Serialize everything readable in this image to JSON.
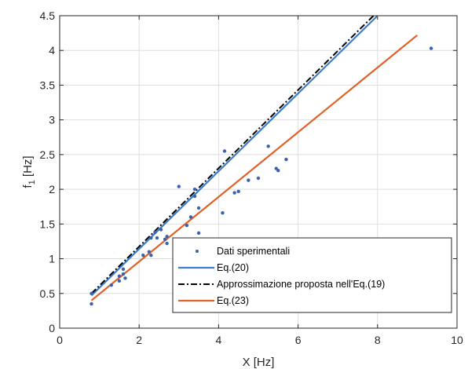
{
  "chart_data": {
    "type": "scatter",
    "xlabel": "X [Hz]",
    "ylabel": "f",
    "ylabel_sub": "1",
    "ylabel_unit": " [Hz]",
    "xlim": [
      0,
      10
    ],
    "ylim": [
      0,
      4.5
    ],
    "xticks": [
      "0",
      "2",
      "4",
      "6",
      "8",
      "10"
    ],
    "yticks": [
      "0",
      "0.5",
      "1",
      "1.5",
      "2",
      "2.5",
      "3",
      "3.5",
      "4",
      "4.5"
    ],
    "grid": true,
    "legend_position": "bottom-right",
    "series": [
      {
        "name": "Dati sperimentali",
        "kind": "points",
        "color": "#3a62b0",
        "points": [
          [
            0.8,
            0.35
          ],
          [
            0.8,
            0.5
          ],
          [
            1.3,
            0.62
          ],
          [
            1.5,
            0.68
          ],
          [
            1.5,
            0.75
          ],
          [
            1.6,
            0.78
          ],
          [
            1.65,
            0.72
          ],
          [
            1.6,
            0.85
          ],
          [
            2.1,
            1.05
          ],
          [
            2.25,
            1.1
          ],
          [
            2.3,
            1.05
          ],
          [
            2.3,
            1.3
          ],
          [
            2.4,
            1.38
          ],
          [
            2.45,
            1.3
          ],
          [
            2.55,
            1.42
          ],
          [
            2.65,
            1.28
          ],
          [
            2.7,
            1.22
          ],
          [
            2.7,
            1.32
          ],
          [
            3.0,
            2.04
          ],
          [
            3.2,
            1.48
          ],
          [
            3.3,
            1.6
          ],
          [
            3.4,
            1.9
          ],
          [
            3.4,
            2.0
          ],
          [
            3.5,
            1.73
          ],
          [
            3.5,
            1.37
          ],
          [
            4.1,
            1.66
          ],
          [
            4.15,
            2.55
          ],
          [
            4.4,
            1.95
          ],
          [
            4.5,
            1.97
          ],
          [
            4.75,
            2.13
          ],
          [
            5.0,
            2.16
          ],
          [
            5.25,
            2.62
          ],
          [
            5.45,
            2.3
          ],
          [
            5.5,
            2.27
          ],
          [
            5.7,
            2.43
          ],
          [
            9.35,
            4.03
          ]
        ]
      },
      {
        "name": "Eq.(20)",
        "kind": "line",
        "color": "#3d7cc9",
        "points": [
          [
            0.8,
            0.47
          ],
          [
            8.0,
            4.5
          ]
        ]
      },
      {
        "name": "Approssimazione proposta nell'Eq.(19)",
        "kind": "dashdot",
        "color": "#000000",
        "points": [
          [
            0.8,
            0.5
          ],
          [
            7.9,
            4.5
          ]
        ]
      },
      {
        "name": "Eq.(23)",
        "kind": "line",
        "color": "#e0622a",
        "points": [
          [
            0.8,
            0.4
          ],
          [
            9.0,
            4.22
          ]
        ]
      }
    ]
  }
}
